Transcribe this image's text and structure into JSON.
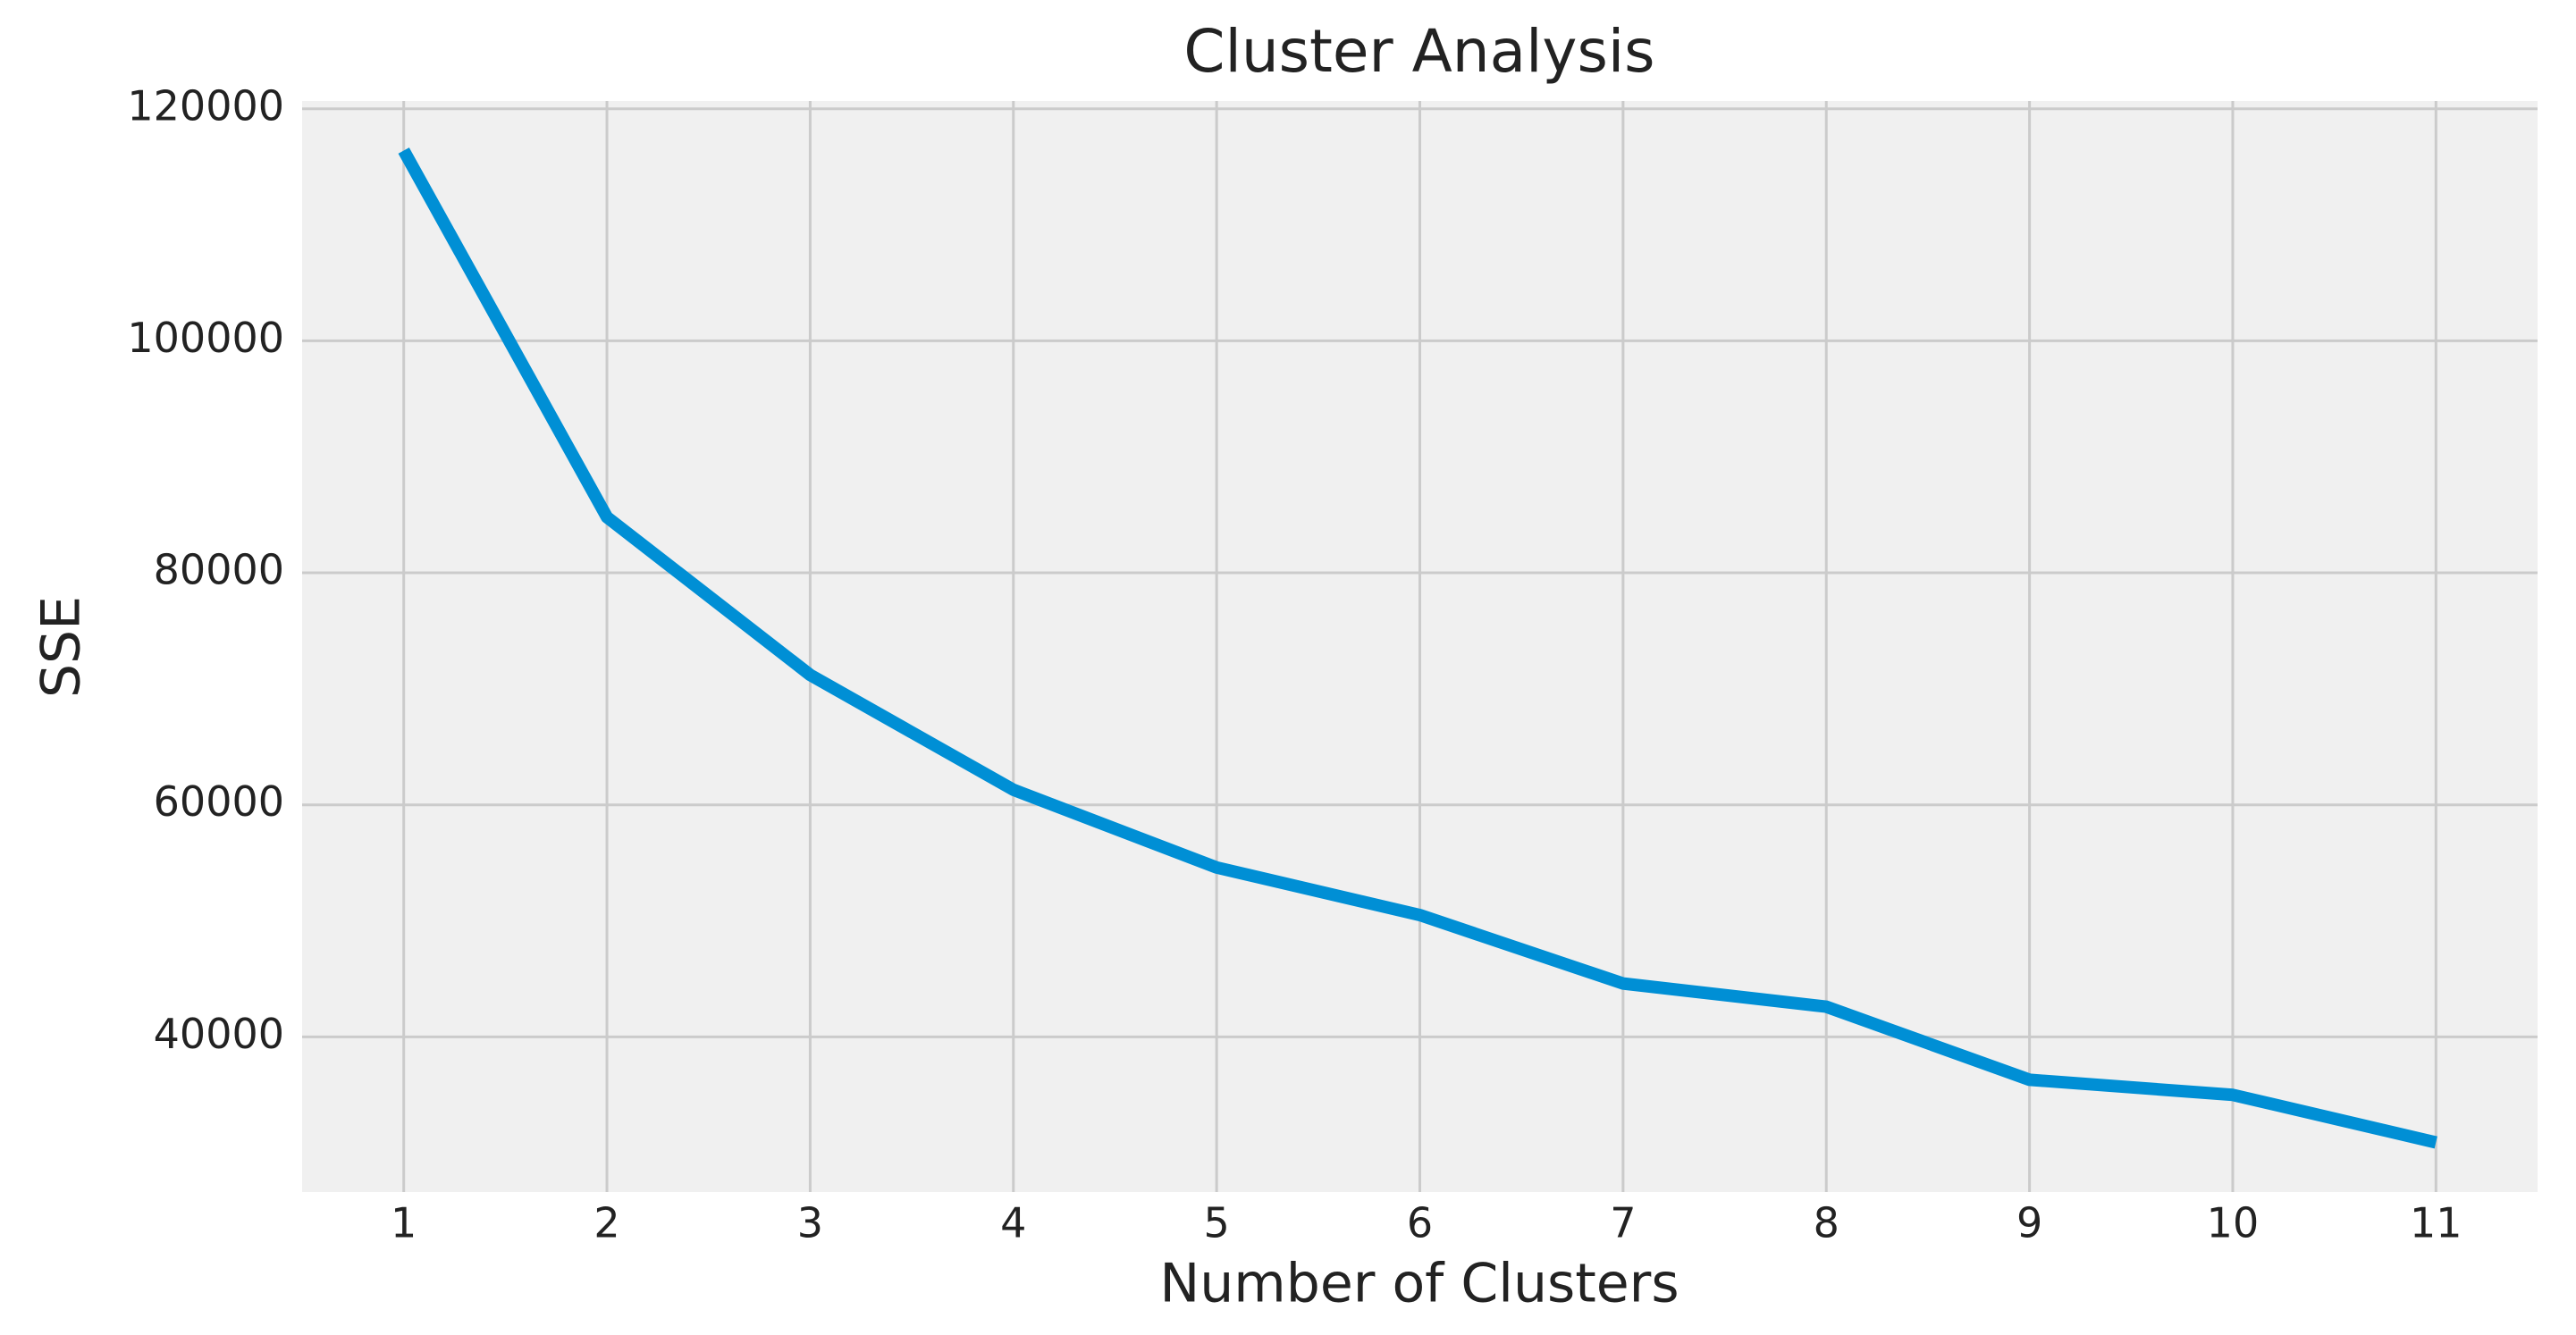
{
  "chart_data": {
    "type": "line",
    "title": "Cluster Analysis",
    "x_label": "Number of Clusters",
    "y_label": "SSE",
    "x": [
      1,
      2,
      3,
      4,
      5,
      6,
      7,
      8,
      9,
      10,
      11
    ],
    "values": [
      116400,
      84800,
      71200,
      61300,
      54600,
      50500,
      44600,
      42600,
      36300,
      35000,
      30900
    ],
    "color": "#008fd5",
    "xlim": [
      0.5,
      11.5
    ],
    "xticks": [
      1,
      2,
      3,
      4,
      5,
      6,
      7,
      8,
      9,
      10,
      11
    ],
    "ylim": [
      26625,
      120675
    ],
    "yticks": [
      40000,
      60000,
      80000,
      100000,
      120000
    ],
    "grid": true
  }
}
